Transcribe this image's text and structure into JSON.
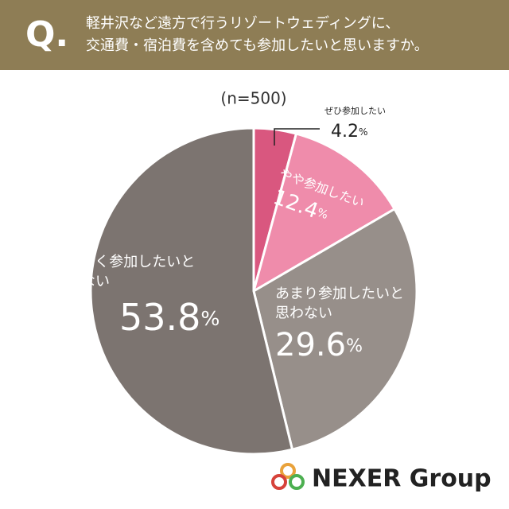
{
  "header": {
    "mark": "Q.",
    "question": "軽井沢など遠方で行うリゾートウェディングに、\n交通費・宿泊費を含めても参加したいと思いますか。"
  },
  "chart_data": {
    "type": "pie",
    "subtitle": "(n=500)",
    "categories": [
      "ぜひ参加したい",
      "やや参加したい",
      "あまり参加したいと\n思わない",
      "まったく参加したいと\n思わない"
    ],
    "values": [
      4.2,
      12.4,
      29.6,
      53.8
    ],
    "value_labels": [
      "4.2%",
      "12.4%",
      "29.6%",
      "53.8%"
    ],
    "colors": [
      "#d9577f",
      "#ef8cab",
      "#978f8a",
      "#7c7470"
    ]
  },
  "logo": "NEXER Group"
}
